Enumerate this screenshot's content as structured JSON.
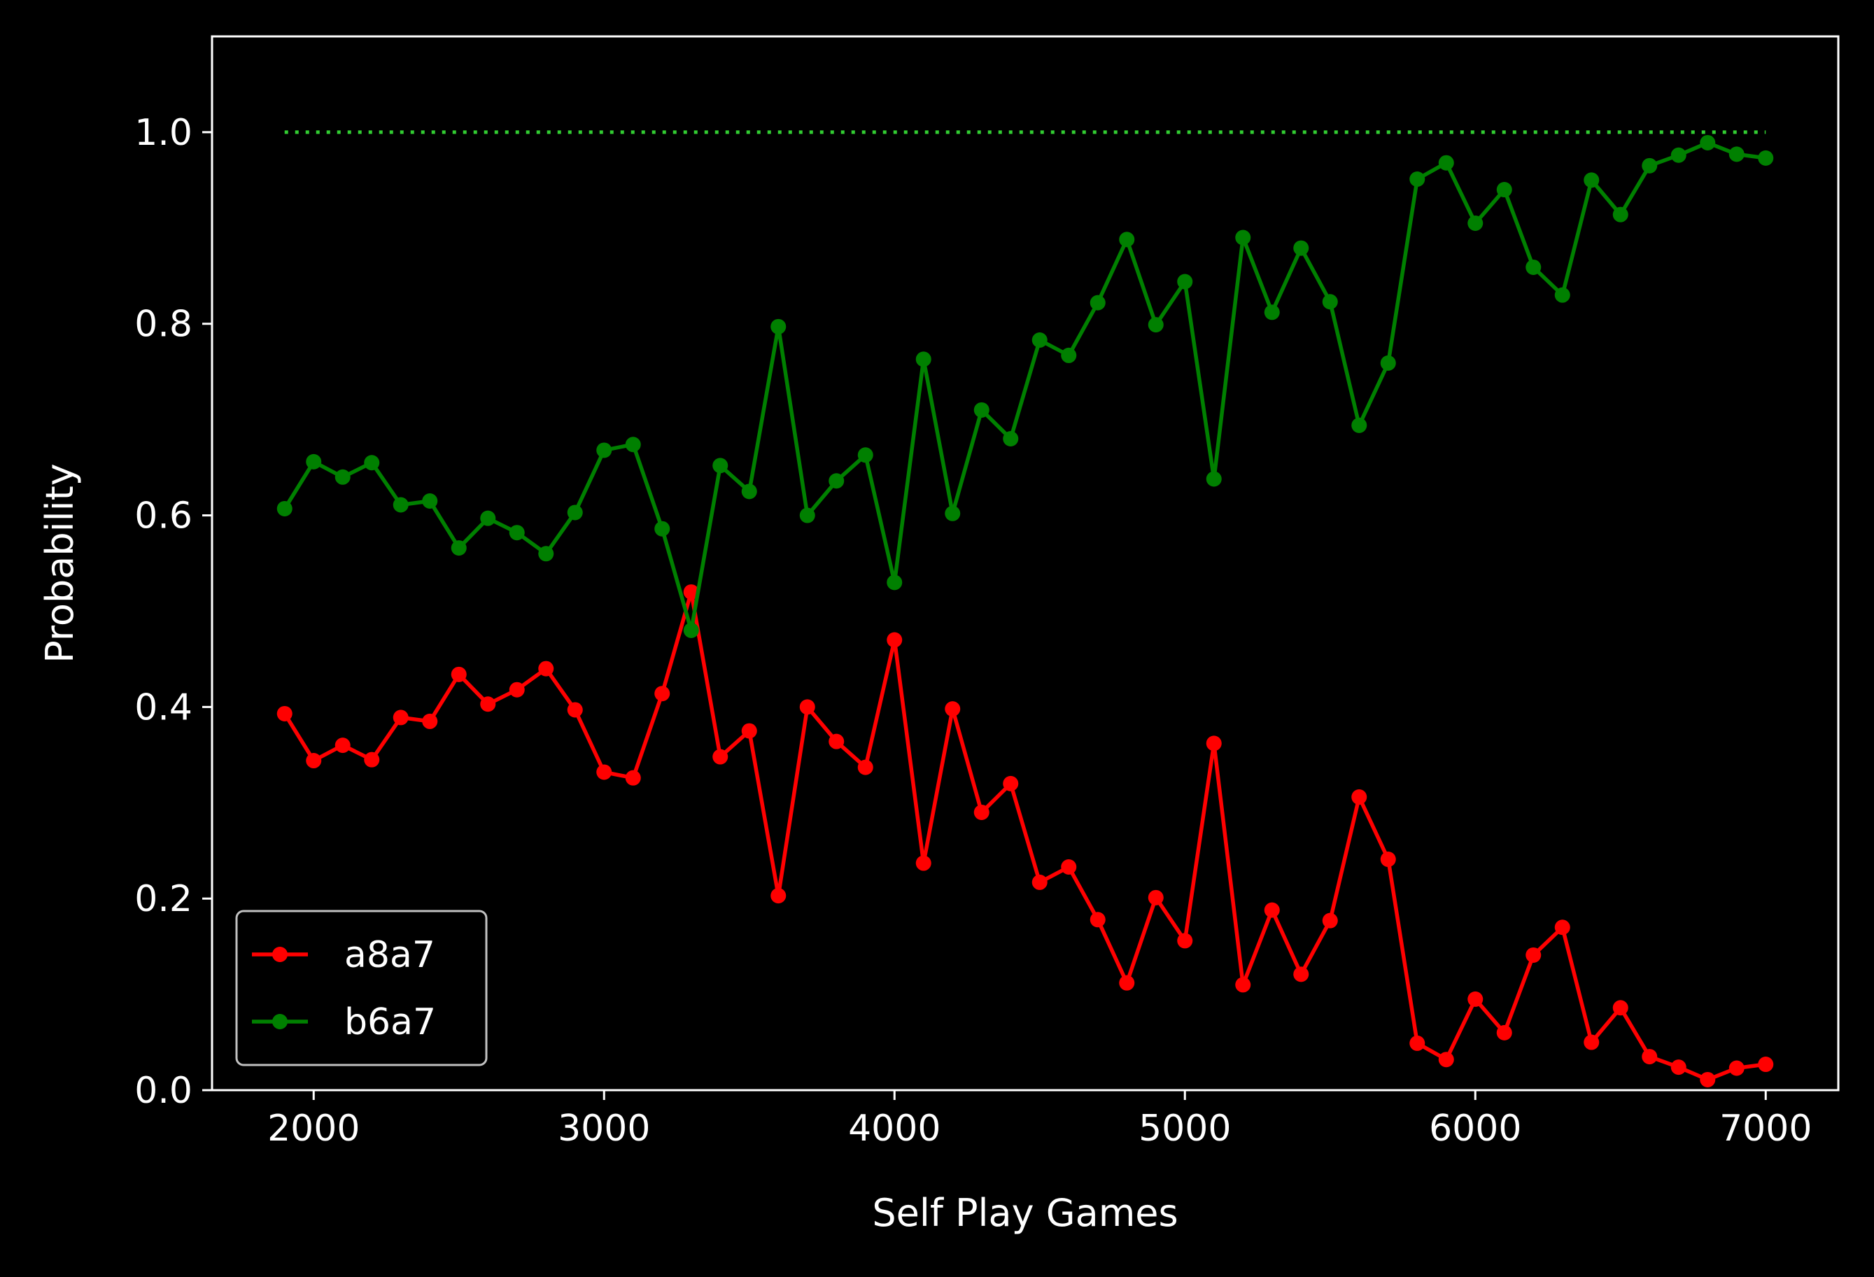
{
  "chart_data": {
    "type": "line",
    "xlabel": "Self Play Games",
    "ylabel": "Probability",
    "xlim": [
      1650,
      7250
    ],
    "ylim": [
      0.0,
      1.1
    ],
    "xticks": [
      2000,
      3000,
      4000,
      5000,
      6000,
      7000
    ],
    "yticks": [
      0.0,
      0.2,
      0.4,
      0.6,
      0.8,
      1.0
    ],
    "xtick_labels": [
      "2000",
      "3000",
      "4000",
      "5000",
      "6000",
      "7000"
    ],
    "ytick_labels": [
      "0.0",
      "0.2",
      "0.4",
      "0.6",
      "0.8",
      "1.0"
    ],
    "grid": false,
    "legend_position": "lower-left",
    "background": "#000000",
    "x": [
      1900,
      2000,
      2100,
      2200,
      2300,
      2400,
      2500,
      2600,
      2700,
      2800,
      2900,
      3000,
      3100,
      3200,
      3300,
      3400,
      3500,
      3600,
      3700,
      3800,
      3900,
      4000,
      4100,
      4200,
      4300,
      4400,
      4500,
      4600,
      4700,
      4800,
      4900,
      5000,
      5100,
      5200,
      5300,
      5400,
      5500,
      5600,
      5700,
      5800,
      5900,
      6000,
      6100,
      6200,
      6300,
      6400,
      6500,
      6600,
      6700,
      6800,
      6900,
      7000
    ],
    "series": [
      {
        "name": "a8a7",
        "color": "#ff0000",
        "values": [
          0.393,
          0.344,
          0.36,
          0.345,
          0.389,
          0.385,
          0.434,
          0.403,
          0.418,
          0.44,
          0.397,
          0.332,
          0.326,
          0.414,
          0.52,
          0.348,
          0.375,
          0.203,
          0.4,
          0.364,
          0.337,
          0.47,
          0.237,
          0.398,
          0.29,
          0.32,
          0.217,
          0.233,
          0.178,
          0.112,
          0.201,
          0.156,
          0.362,
          0.11,
          0.188,
          0.121,
          0.177,
          0.306,
          0.241,
          0.049,
          0.032,
          0.095,
          0.06,
          0.141,
          0.17,
          0.05,
          0.086,
          0.035,
          0.024,
          0.011,
          0.023,
          0.027
        ]
      },
      {
        "name": "b6a7",
        "color": "#008000",
        "values": [
          0.607,
          0.656,
          0.64,
          0.655,
          0.611,
          0.615,
          0.566,
          0.597,
          0.582,
          0.56,
          0.603,
          0.668,
          0.674,
          0.586,
          0.48,
          0.652,
          0.625,
          0.797,
          0.6,
          0.636,
          0.663,
          0.53,
          0.763,
          0.602,
          0.71,
          0.68,
          0.783,
          0.767,
          0.822,
          0.888,
          0.799,
          0.844,
          0.638,
          0.89,
          0.812,
          0.879,
          0.823,
          0.694,
          0.759,
          0.951,
          0.968,
          0.905,
          0.94,
          0.859,
          0.83,
          0.95,
          0.914,
          0.965,
          0.976,
          0.989,
          0.977,
          0.973
        ]
      }
    ],
    "reference_line": {
      "y": 1.0,
      "x_range": [
        1900,
        7000
      ],
      "style": "dotted",
      "color": "#32cd32"
    }
  }
}
